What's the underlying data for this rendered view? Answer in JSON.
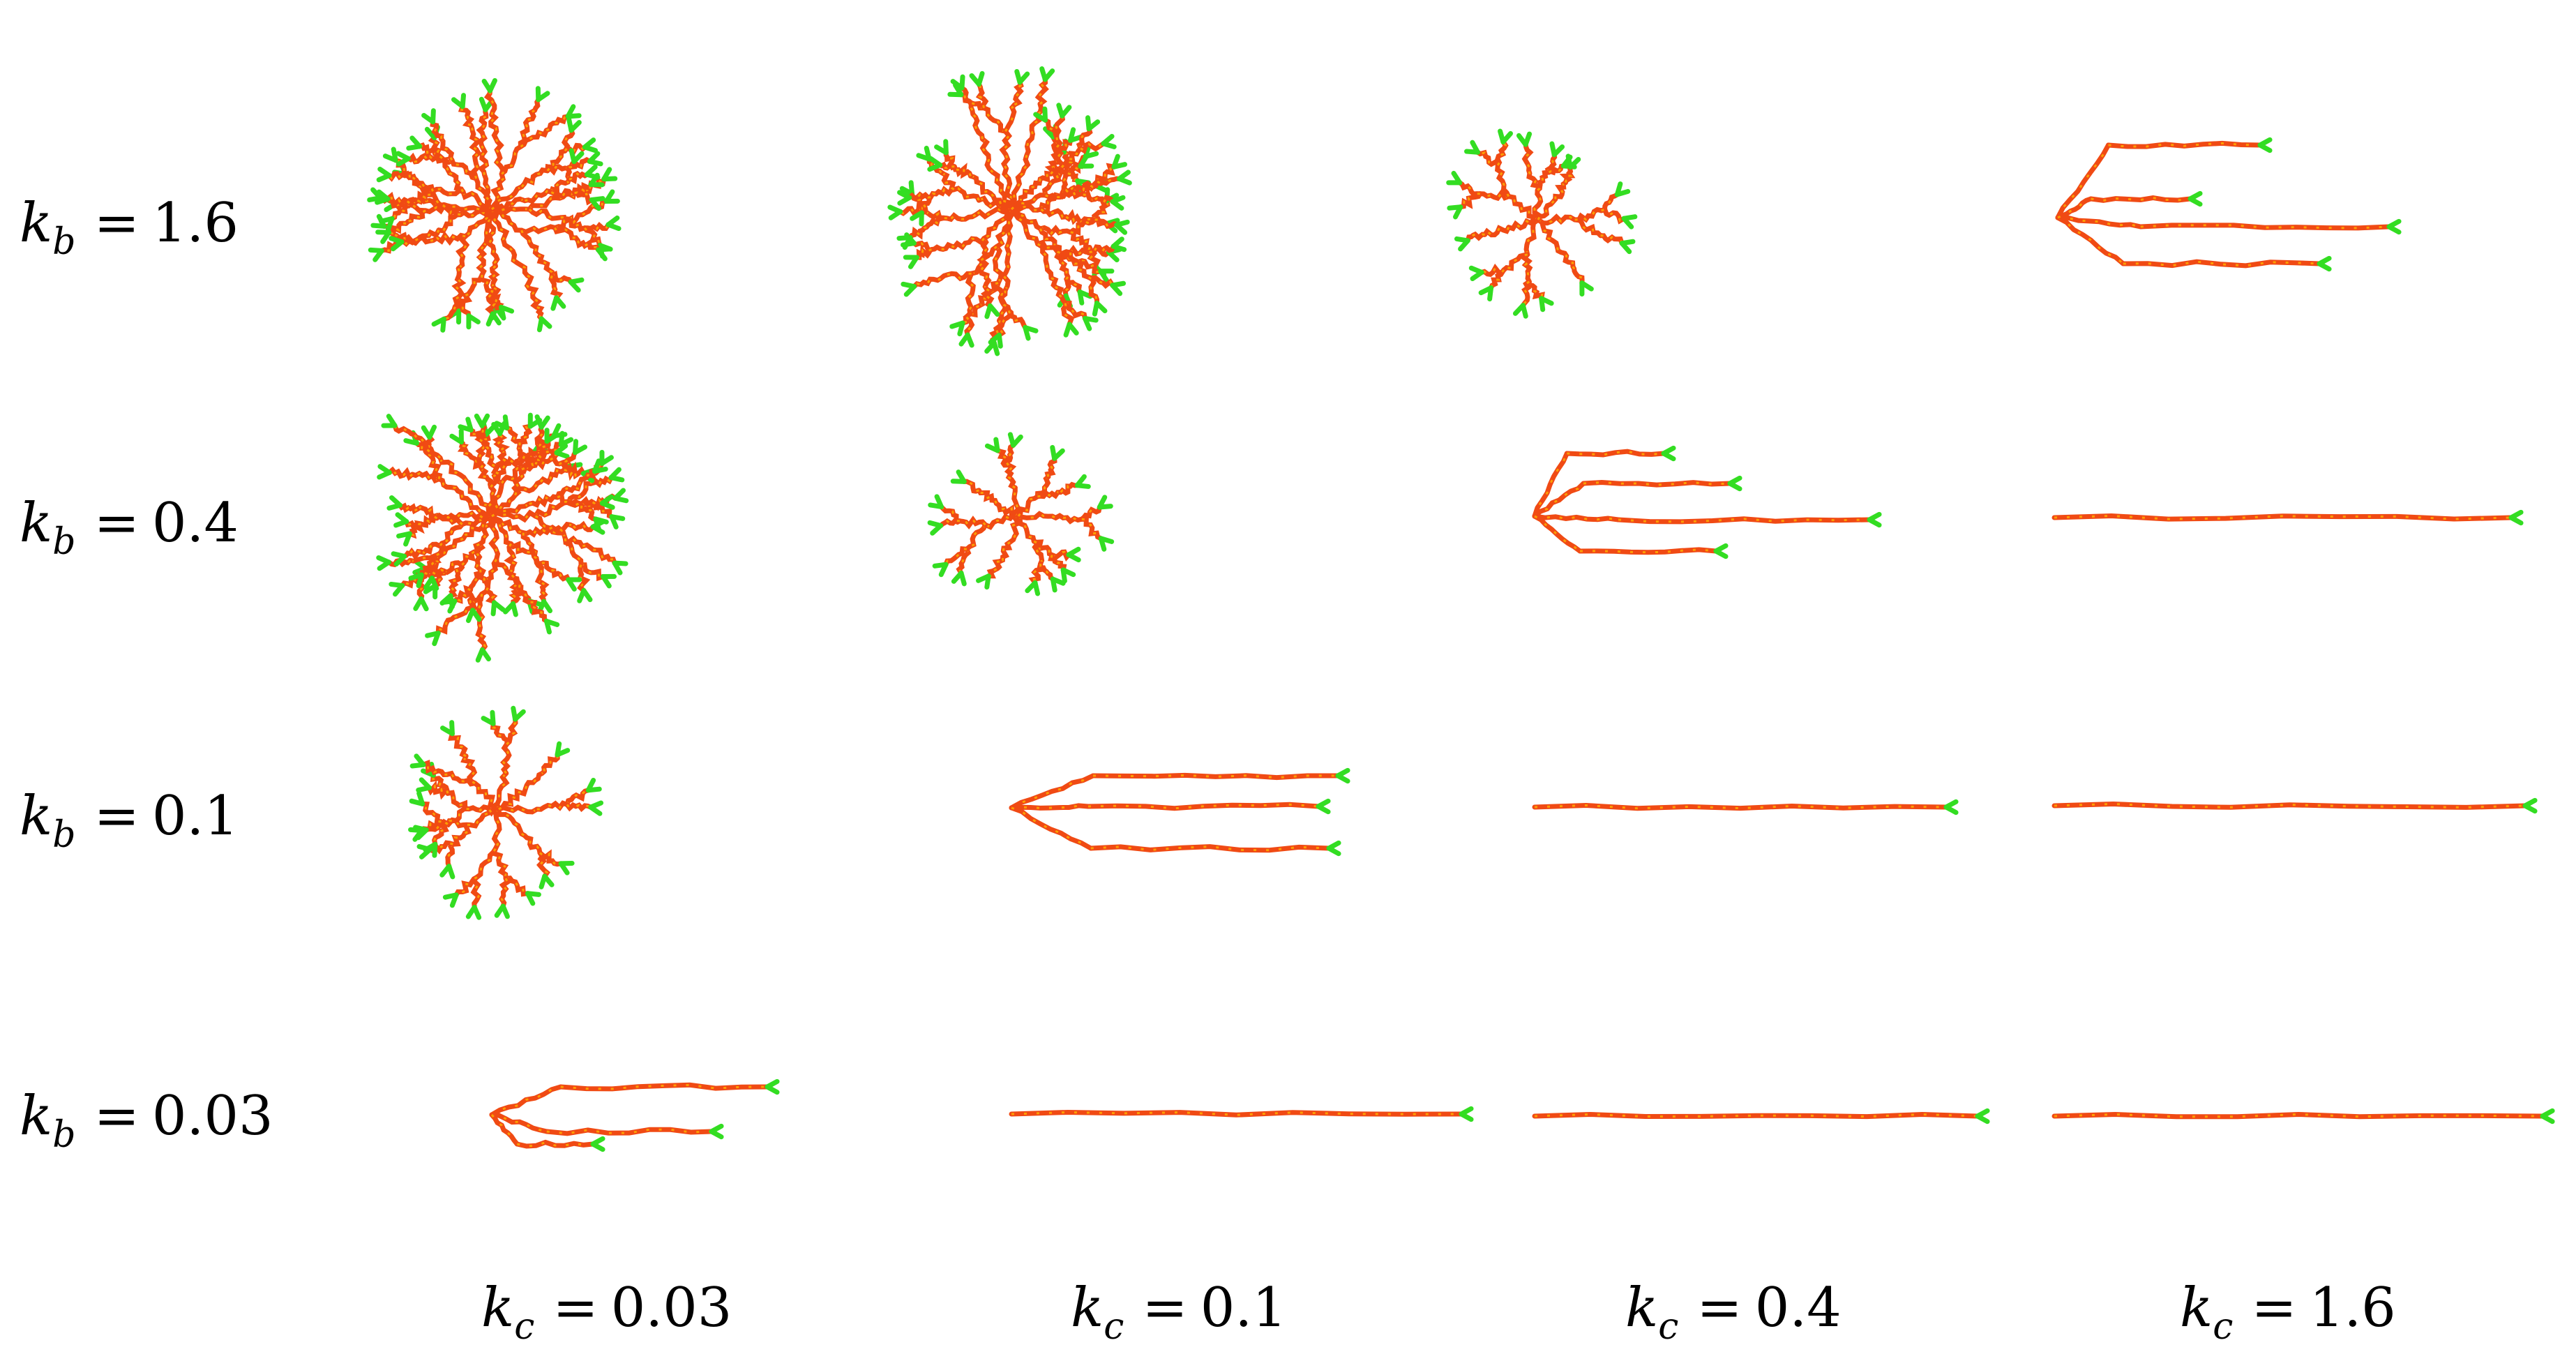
{
  "row_labels": [
    {
      "sym": "k",
      "sub": "b",
      "eq": "=",
      "val": "1.6"
    },
    {
      "sym": "k",
      "sub": "b",
      "eq": "=",
      "val": "0.4"
    },
    {
      "sym": "k",
      "sub": "b",
      "eq": "=",
      "val": "0.1"
    },
    {
      "sym": "k",
      "sub": "b",
      "eq": "=",
      "val": "0.03"
    }
  ],
  "col_labels": [
    {
      "sym": "k",
      "sub": "c",
      "eq": "=",
      "val": "0.03"
    },
    {
      "sym": "k",
      "sub": "c",
      "eq": "=",
      "val": "0.1"
    },
    {
      "sym": "k",
      "sub": "c",
      "eq": "=",
      "val": "0.4"
    },
    {
      "sym": "k",
      "sub": "c",
      "eq": "=",
      "val": "1.6"
    }
  ],
  "colors": {
    "branch": "#f04a14",
    "branch_highlight": "#ffb400",
    "tip": "#33dd22"
  }
}
